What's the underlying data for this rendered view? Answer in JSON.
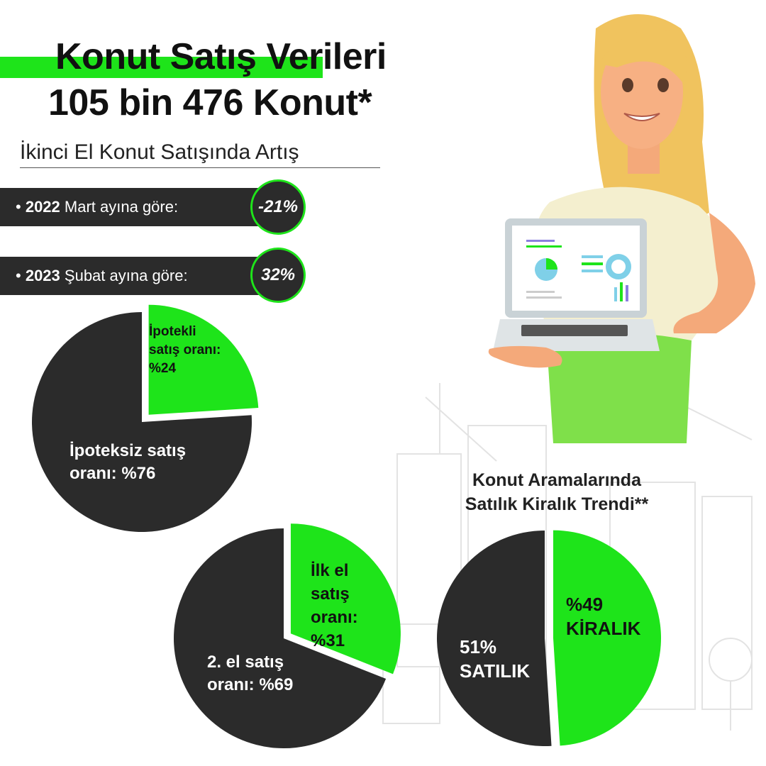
{
  "header": {
    "title_line1": "Konut Satış Verileri",
    "title_line2": "105 bin 476 Konut*",
    "subtitle": "İkinci El Konut Satışında Artış"
  },
  "stats": [
    {
      "year": "2022",
      "text": "Mart ayına göre:",
      "value": "-21%"
    },
    {
      "year": "2023",
      "text": "Şubat ayına göre:",
      "value": "32%"
    }
  ],
  "trend_title_line1": "Konut Aramalarında",
  "trend_title_line2": "Satılık Kiralık Trendi**",
  "colors": {
    "green": "#1ee41a",
    "dark": "#2b2b2b"
  },
  "illustration": {
    "icon": "woman-with-laptop-illustration"
  },
  "chart_data": [
    {
      "type": "pie",
      "slices": [
        {
          "label_lines": [
            "İpotekli",
            "satış oranı:",
            "%24"
          ],
          "value": 24,
          "color": "#1ee41a"
        },
        {
          "label_lines": [
            "İpoteksiz satış",
            "oranı: %76"
          ],
          "value": 76,
          "color": "#2b2b2b"
        }
      ]
    },
    {
      "type": "pie",
      "slices": [
        {
          "label_lines": [
            "İlk el",
            "satış",
            "oranı:",
            "%31"
          ],
          "value": 31,
          "color": "#1ee41a"
        },
        {
          "label_lines": [
            "2. el satış",
            "oranı: %69"
          ],
          "value": 69,
          "color": "#2b2b2b"
        }
      ]
    },
    {
      "type": "pie",
      "slices": [
        {
          "label_lines": [
            "%49",
            "KİRALIK"
          ],
          "value": 49,
          "color": "#1ee41a"
        },
        {
          "label_lines": [
            "51%",
            "SATILIK"
          ],
          "value": 51,
          "color": "#2b2b2b"
        }
      ]
    }
  ]
}
